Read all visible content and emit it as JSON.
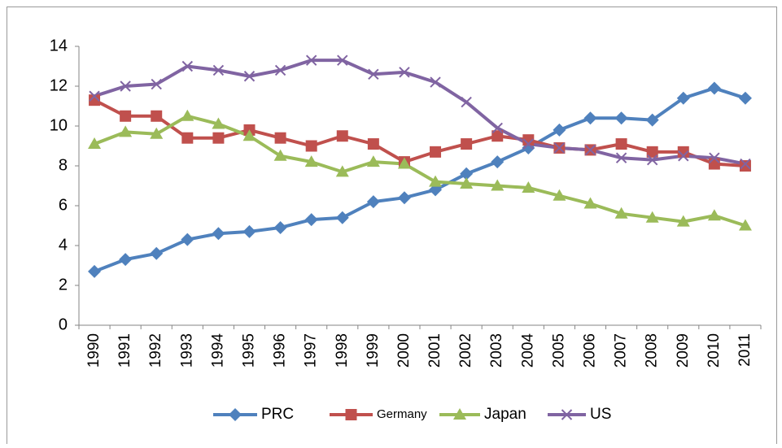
{
  "chart_data": {
    "type": "line",
    "categories": [
      "1990",
      "1991",
      "1992",
      "1993",
      "1994",
      "1995",
      "1996",
      "1997",
      "1998",
      "1999",
      "2000",
      "2001",
      "2002",
      "2003",
      "2004",
      "2005",
      "2006",
      "2007",
      "2008",
      "2009",
      "2010",
      "2011"
    ],
    "ylim": [
      0,
      14
    ],
    "yticks": [
      0,
      2,
      4,
      6,
      8,
      10,
      12,
      14
    ],
    "series": [
      {
        "name": "PRC",
        "color": "#4f81bd",
        "marker": "diamond",
        "values": [
          2.7,
          3.3,
          3.6,
          4.3,
          4.6,
          4.7,
          4.9,
          5.3,
          5.4,
          6.2,
          6.4,
          6.8,
          7.6,
          8.2,
          8.9,
          9.8,
          10.4,
          10.4,
          10.3,
          11.4,
          11.9,
          11.4
        ]
      },
      {
        "name": "Germany",
        "color": "#c0504d",
        "marker": "square",
        "values": [
          11.3,
          10.5,
          10.5,
          9.4,
          9.4,
          9.8,
          9.4,
          9.0,
          9.5,
          9.1,
          8.2,
          8.7,
          9.1,
          9.5,
          9.3,
          8.9,
          8.8,
          9.1,
          8.7,
          8.7,
          8.1,
          8.0
        ]
      },
      {
        "name": "Japan",
        "color": "#9bbb59",
        "marker": "triangle",
        "values": [
          9.1,
          9.7,
          9.6,
          10.5,
          10.1,
          9.5,
          8.5,
          8.2,
          7.7,
          8.2,
          8.1,
          7.2,
          7.1,
          7.0,
          6.9,
          6.5,
          6.1,
          5.6,
          5.4,
          5.2,
          5.5,
          5.0
        ]
      },
      {
        "name": "US",
        "color": "#8064a2",
        "marker": "x",
        "values": [
          11.5,
          12.0,
          12.1,
          13.0,
          12.8,
          12.5,
          12.8,
          13.3,
          13.3,
          12.6,
          12.7,
          12.2,
          11.2,
          9.9,
          9.1,
          8.9,
          8.8,
          8.4,
          8.3,
          8.5,
          8.4,
          8.1
        ]
      }
    ]
  }
}
